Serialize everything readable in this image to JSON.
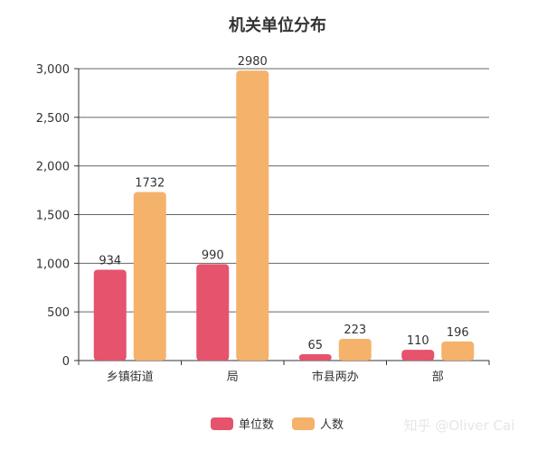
{
  "chart_data": {
    "type": "bar",
    "title": "机关单位分布",
    "categories": [
      "乡镇街道",
      "局",
      "市县两办",
      "部"
    ],
    "series": [
      {
        "name": "单位数",
        "values": [
          934,
          990,
          65,
          110
        ],
        "color": "#e5536d"
      },
      {
        "name": "人数",
        "values": [
          1732,
          2980,
          223,
          196
        ],
        "color": "#f5b26b"
      }
    ],
    "ylim": [
      0,
      3000
    ],
    "y_ticks": [
      0,
      500,
      1000,
      1500,
      2000,
      2500,
      3000
    ],
    "y_tick_labels": [
      "0",
      "500",
      "1,000",
      "1,500",
      "2,000",
      "2,500",
      "3,000"
    ],
    "grid": true,
    "legend_position": "bottom-center",
    "xlabel": "",
    "ylabel": ""
  },
  "watermark": "知乎 @Oliver Cai"
}
